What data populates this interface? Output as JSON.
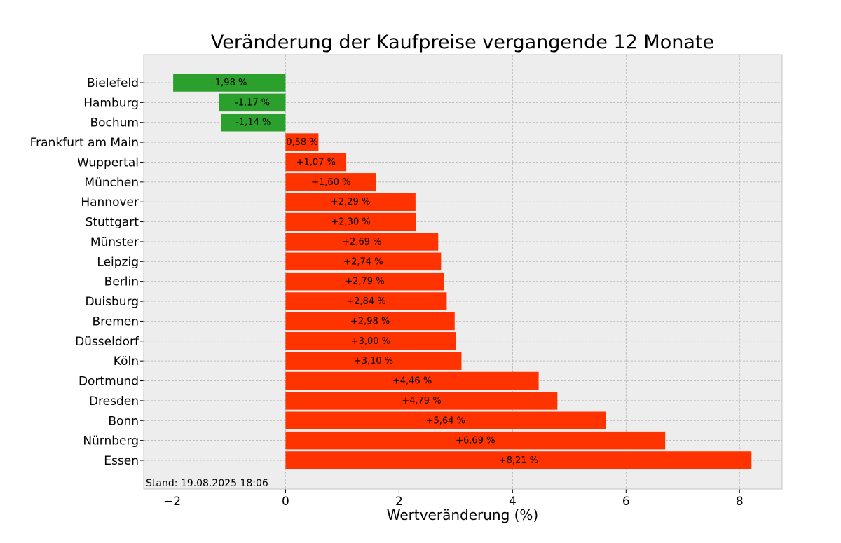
{
  "chart_data": {
    "type": "bar",
    "orientation": "horizontal",
    "title": "Veränderung der Kaufpreise vergangende 12 Monate",
    "xlabel": "Wertveränderung (%)",
    "ylabel": "",
    "xlim": [
      -2.5,
      8.75
    ],
    "xticks": [
      -2,
      0,
      2,
      4,
      6,
      8
    ],
    "xtick_labels": [
      "−2",
      "0",
      "2",
      "4",
      "6",
      "8"
    ],
    "grid": true,
    "footnote": "Stand: 19.08.2025 18:06",
    "categories": [
      "Bielefeld",
      "Hamburg",
      "Bochum",
      "Frankfurt am Main",
      "Wuppertal",
      "München",
      "Hannover",
      "Stuttgart",
      "Münster",
      "Leipzig",
      "Berlin",
      "Duisburg",
      "Bremen",
      "Düsseldorf",
      "Köln",
      "Dortmund",
      "Dresden",
      "Bonn",
      "Nürnberg",
      "Essen"
    ],
    "values": [
      -1.98,
      -1.17,
      -1.14,
      0.58,
      1.07,
      1.6,
      2.29,
      2.3,
      2.69,
      2.74,
      2.79,
      2.84,
      2.98,
      3.0,
      3.1,
      4.46,
      4.79,
      5.64,
      6.69,
      8.21
    ],
    "value_labels": [
      "-1,98 %",
      "-1,17 %",
      "-1,14 %",
      "0,58 %",
      "+1,07 %",
      "+1,60 %",
      "+2,29 %",
      "+2,30 %",
      "+2,69 %",
      "+2,74 %",
      "+2,79 %",
      "+2,84 %",
      "+2,98 %",
      "+3,00 %",
      "+3,10 %",
      "+4,46 %",
      "+4,79 %",
      "+5,64 %",
      "+6,69 %",
      "+8,21 %"
    ],
    "colors": {
      "negative": "#2ca02c",
      "positive": "#ff3300",
      "plot_background": "#ededed",
      "grid": "#b0b0b0"
    }
  }
}
